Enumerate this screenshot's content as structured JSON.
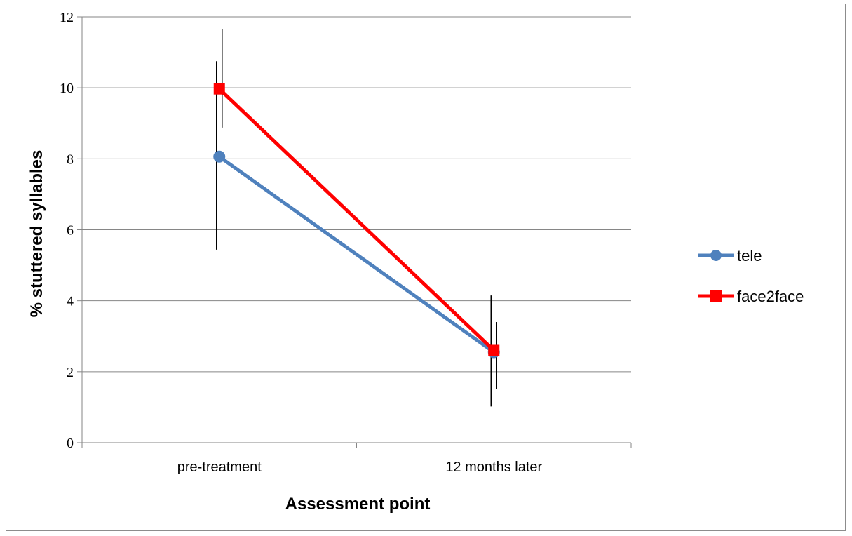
{
  "chart_data": {
    "type": "line",
    "categories": [
      "pre-treatment",
      "12 months later"
    ],
    "series": [
      {
        "name": "tele",
        "values": [
          8.06,
          2.55
        ],
        "error_low": [
          5.44,
          1.02
        ],
        "error_high": [
          10.75,
          4.15
        ],
        "color": "#4f81bd",
        "marker": "circle"
      },
      {
        "name": "face2face",
        "values": [
          9.97,
          2.6
        ],
        "error_low": [
          8.88,
          1.52
        ],
        "error_high": [
          11.65,
          3.4
        ],
        "color": "#ff0000",
        "marker": "square"
      }
    ],
    "xlabel": "Assessment point",
    "ylabel": "% stuttered syllables",
    "ylim": [
      0,
      12
    ],
    "yticks": [
      "0",
      "2",
      "4",
      "6",
      "8",
      "10",
      "12"
    ],
    "grid": true,
    "legend_position": "right"
  }
}
